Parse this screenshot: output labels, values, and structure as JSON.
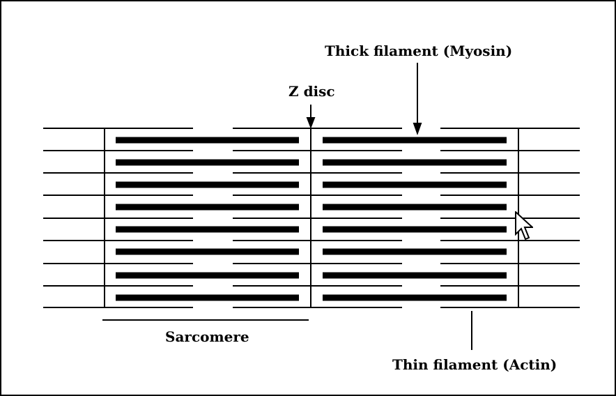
{
  "labels": {
    "thick_filament": "Thick filament (Myosin)",
    "z_disc": "Z disc",
    "sarcomere": "Sarcomere",
    "thin_filament": "Thin filament (Actin)"
  },
  "icons": {
    "cursor": "arrow-pointer-icon"
  },
  "colors": {
    "line": "#000000",
    "background": "#ffffff"
  }
}
